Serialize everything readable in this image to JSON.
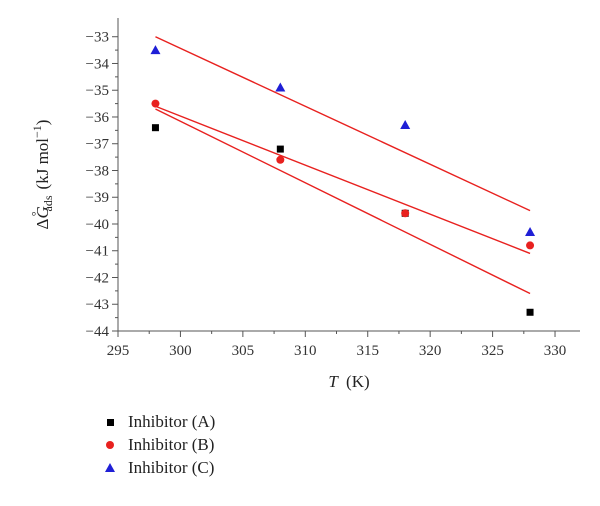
{
  "chart_data": {
    "type": "scatter",
    "xlabel_italic": "T",
    "xlabel_unit": "(K)",
    "ylabel": "ΔG°ads (kJ mol−1)",
    "xlim": [
      295,
      332
    ],
    "ylim": [
      -44,
      -32.3
    ],
    "xticks": [
      295,
      300,
      305,
      310,
      315,
      320,
      325,
      330
    ],
    "yticks": [
      -44,
      -43,
      -42,
      -41,
      -40,
      -39,
      -38,
      -37,
      -36,
      -35,
      -34,
      -33
    ],
    "x": [
      298,
      308,
      318,
      328
    ],
    "series": [
      {
        "name": "Inhibitor (A)",
        "marker": "square",
        "color": "#000000",
        "values": [
          -36.4,
          -37.2,
          -39.6,
          -43.3
        ],
        "fit": [
          [
            298,
            -35.7
          ],
          [
            328,
            -42.6
          ]
        ]
      },
      {
        "name": "Inhibitor (B)",
        "marker": "circle",
        "color": "#e8211f",
        "values": [
          -35.5,
          -37.6,
          -39.6,
          -40.8
        ],
        "fit": [
          [
            298,
            -35.6
          ],
          [
            328,
            -41.1
          ]
        ]
      },
      {
        "name": "Inhibitor (C)",
        "marker": "triangle",
        "color": "#1f1fd6",
        "values": [
          -33.5,
          -34.9,
          -36.3,
          -40.3
        ],
        "fit": [
          [
            298,
            -33.0
          ],
          [
            328,
            -39.5
          ]
        ]
      }
    ],
    "fit_line_color": "#e8211f",
    "grid": false,
    "legend_position": "bottom-left"
  }
}
